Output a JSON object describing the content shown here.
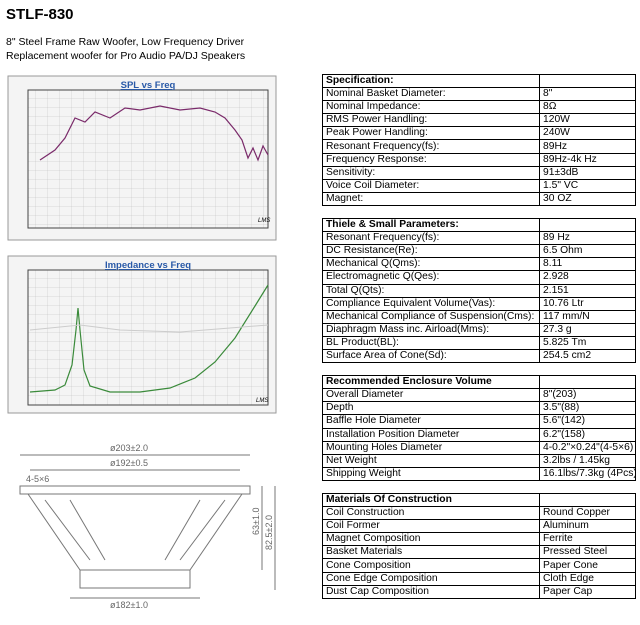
{
  "header": {
    "title": "STLF-830",
    "subtitle": "8\" Steel Frame Raw Woofer, Low Frequency Driver",
    "description": "Replacement woofer for  Pro Audio PA/DJ Speakers"
  },
  "charts": [
    {
      "title": "SPL vs Freq",
      "note": "LMS"
    },
    {
      "title": "Impedance vs Freq",
      "note": "LMS"
    }
  ],
  "drawing": {
    "labels": [
      "ø203±2.0",
      "ø192±0.5",
      "4-5×6",
      "63±1.0",
      "82.5±2.0",
      "ø182±1.0"
    ]
  },
  "table": {
    "sections": [
      {
        "title": "Specification:",
        "rows": [
          [
            "Nominal Basket Diameter:",
            "8\""
          ],
          [
            "Nominal Impedance:",
            "8Ω"
          ],
          [
            "RMS Power Handling:",
            "120W"
          ],
          [
            "Peak Power Handling:",
            "240W"
          ],
          [
            "Resonant Frequency(fs):",
            "89Hz"
          ],
          [
            "Frequency Response:",
            "89Hz-4k Hz"
          ],
          [
            "Sensitivity:",
            "91±3dB"
          ],
          [
            "Voice Coil Diameter:",
            "1.5\" VC"
          ],
          [
            "Magnet:",
            "30 OZ"
          ]
        ]
      },
      {
        "title": "Thiele & Small Parameters:",
        "rows": [
          [
            "Resonant Frequency(fs):",
            "89 Hz"
          ],
          [
            "DC Resistance(Re):",
            "6.5 Ohm"
          ],
          [
            "Mechanical Q(Qms):",
            "8.11"
          ],
          [
            "Electromagnetic Q(Qes):",
            "2.928"
          ],
          [
            "Total Q(Qts):",
            "2.151"
          ],
          [
            "Compliance Equivalent Volume(Vas):",
            "10.76 Ltr"
          ],
          [
            "Mechanical Compliance of Suspension(Cms):",
            "117 mm/N"
          ],
          [
            "Diaphragm Mass inc. Airload(Mms):",
            "27.3 g"
          ],
          [
            "BL Product(BL):",
            "5.825 Tm"
          ],
          [
            "Surface Area of Cone(Sd):",
            "254.5 cm2"
          ]
        ]
      },
      {
        "title": "Recommended Enclosure Volume",
        "rows": [
          [
            "Overall Diameter",
            "8\"(203)"
          ],
          [
            "Depth",
            "3.5\"(88)"
          ],
          [
            "Baffle Hole Diameter",
            "5.6\"(142)"
          ],
          [
            "Installation Position  Diameter",
            "6.2\"(158)"
          ],
          [
            "Mounting Holes Diameter",
            "4-0.2\"×0.24\"(4-5×6)"
          ],
          [
            "Net Weight",
            "3.2lbs / 1.45kg"
          ],
          [
            "Shipping Weight",
            "16.1lbs/7.3kg (4Pcs)"
          ]
        ]
      },
      {
        "title": "Materials Of Construction",
        "rows": [
          [
            "Coil Construction",
            "Round Copper"
          ],
          [
            "Coil Former",
            "Aluminum"
          ],
          [
            "Magnet Composition",
            "Ferrite"
          ],
          [
            "Basket Materials",
            "Pressed Steel"
          ],
          [
            "Cone Composition",
            "Paper Cone"
          ],
          [
            "Cone Edge Composition",
            "Cloth Edge"
          ],
          [
            "Dust Cap Composition",
            "Paper Cap"
          ]
        ]
      }
    ]
  }
}
